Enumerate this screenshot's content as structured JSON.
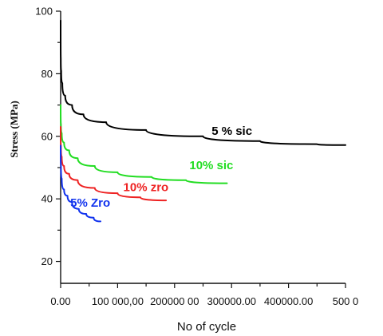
{
  "chart_data": {
    "type": "line",
    "title": "",
    "xlabel": "No of cycle",
    "ylabel": "Stress (MPa)",
    "xlim": [
      0,
      500000
    ],
    "ylim": [
      13,
      100
    ],
    "x_tick_labels": [
      "0.00",
      "100 000,00",
      "200000 00",
      "300000.00",
      "400000.00",
      "500 0"
    ],
    "y_ticks": [
      20,
      40,
      60,
      80,
      100
    ],
    "grid": false,
    "series": [
      {
        "name": "5 % sic",
        "color": "#000000",
        "points": [
          [
            0,
            97
          ],
          [
            300,
            85
          ],
          [
            1000,
            81
          ],
          [
            3000,
            77
          ],
          [
            8000,
            73
          ],
          [
            20000,
            70
          ],
          [
            40000,
            67
          ],
          [
            80000,
            64.5
          ],
          [
            150000,
            62
          ],
          [
            250000,
            60
          ],
          [
            350000,
            58.5
          ],
          [
            450000,
            57.5
          ],
          [
            500000,
            57.2
          ]
        ]
      },
      {
        "name": "10% sic",
        "color": "#22dd22",
        "points": [
          [
            0,
            70
          ],
          [
            600,
            64
          ],
          [
            2000,
            61
          ],
          [
            6000,
            58
          ],
          [
            15000,
            55.5
          ],
          [
            30000,
            53
          ],
          [
            60000,
            50.5
          ],
          [
            100000,
            48.5
          ],
          [
            160000,
            47
          ],
          [
            220000,
            46
          ],
          [
            292000,
            45
          ]
        ]
      },
      {
        "name": "10% zro",
        "color": "#ee2222",
        "points": [
          [
            0,
            63
          ],
          [
            500,
            57
          ],
          [
            2000,
            53.5
          ],
          [
            6000,
            50.5
          ],
          [
            15000,
            48
          ],
          [
            30000,
            46
          ],
          [
            60000,
            43.5
          ],
          [
            100000,
            41.8
          ],
          [
            140000,
            40.5
          ],
          [
            185000,
            39.5
          ]
        ]
      },
      {
        "name": "5% Zro",
        "color": "#1133ee",
        "points": [
          [
            0,
            57
          ],
          [
            500,
            51
          ],
          [
            2000,
            46.5
          ],
          [
            6000,
            43
          ],
          [
            12000,
            41
          ],
          [
            20000,
            39
          ],
          [
            32000,
            36.8
          ],
          [
            45000,
            35.2
          ],
          [
            58000,
            34
          ],
          [
            70000,
            32.8
          ]
        ]
      }
    ],
    "annotations": [
      {
        "text": "5 % sic",
        "x": 265000,
        "y": 60.5,
        "color": "#000000"
      },
      {
        "text": "10% sic",
        "x": 226000,
        "y": 49.5,
        "color": "#22dd22"
      },
      {
        "text": "10% zro",
        "x": 110000,
        "y": 42.5,
        "color": "#ee2222"
      },
      {
        "text": "5% Zro",
        "x": 17000,
        "y": 37.5,
        "color": "#1133ee"
      }
    ]
  }
}
